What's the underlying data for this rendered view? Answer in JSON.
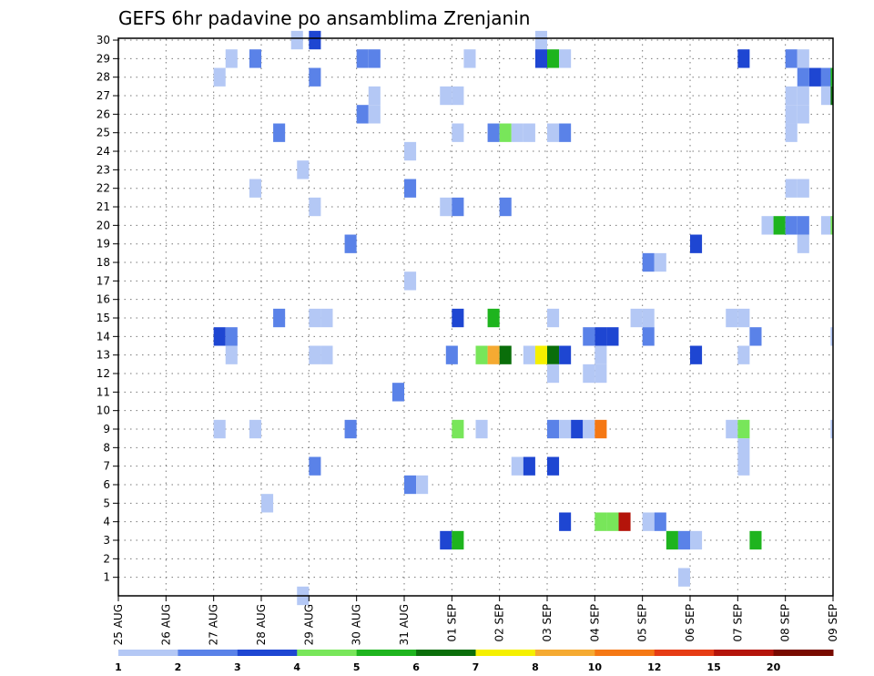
{
  "chart_data": {
    "type": "heatmap",
    "title": "GEFS 6hr padavine po ansamblima Zrenjanin",
    "xlabel": "",
    "ylabel": "",
    "x_ticks": [
      "25 AUG",
      "26 AUG",
      "27 AUG",
      "28 AUG",
      "29 AUG",
      "30 AUG",
      "31 AUG",
      "01 SEP",
      "02 SEP",
      "03 SEP",
      "04 SEP",
      "05 SEP",
      "06 SEP",
      "07 SEP",
      "08 SEP",
      "09 SEP"
    ],
    "x_range_steps": [
      0,
      60
    ],
    "step_hours": 6,
    "y_ticks": [
      1,
      2,
      3,
      4,
      5,
      6,
      7,
      8,
      9,
      10,
      11,
      12,
      13,
      14,
      15,
      16,
      17,
      18,
      19,
      20,
      21,
      22,
      23,
      24,
      25,
      26,
      27,
      28,
      29,
      30
    ],
    "y_range": [
      0,
      30
    ],
    "grid": true,
    "colorbar": {
      "labels": [
        "1",
        "2",
        "3",
        "4",
        "5",
        "6",
        "7",
        "8",
        "10",
        "12",
        "15",
        "20"
      ],
      "colors": [
        "#b4c8f5",
        "#5a82e8",
        "#1e46d2",
        "#78e65a",
        "#1eb41e",
        "#0a6e0a",
        "#f5f000",
        "#f5aa32",
        "#f57814",
        "#e63c14",
        "#b4140a",
        "#780a00"
      ]
    },
    "cells": [
      {
        "t": 14.5,
        "m": 30,
        "c": 1
      },
      {
        "t": 16,
        "m": 30,
        "c": 3
      },
      {
        "t": 35,
        "m": 30,
        "c": 1
      },
      {
        "t": 9,
        "m": 29,
        "c": 1
      },
      {
        "t": 11,
        "m": 29,
        "c": 2
      },
      {
        "t": 20,
        "m": 29,
        "c": 2
      },
      {
        "t": 21,
        "m": 29,
        "c": 2
      },
      {
        "t": 29,
        "m": 29,
        "c": 1
      },
      {
        "t": 35,
        "m": 29,
        "c": 3
      },
      {
        "t": 36,
        "m": 29,
        "c": 5
      },
      {
        "t": 37,
        "m": 29,
        "c": 1
      },
      {
        "t": 52,
        "m": 29,
        "c": 3
      },
      {
        "t": 56,
        "m": 29,
        "c": 2
      },
      {
        "t": 57,
        "m": 29,
        "c": 1
      },
      {
        "t": 8,
        "m": 28,
        "c": 1
      },
      {
        "t": 16,
        "m": 28,
        "c": 2
      },
      {
        "t": 57,
        "m": 28,
        "c": 2
      },
      {
        "t": 58,
        "m": 28,
        "c": 3
      },
      {
        "t": 59,
        "m": 28,
        "c": 2
      },
      {
        "t": 59.8,
        "m": 28,
        "c": 5
      },
      {
        "t": 21,
        "m": 27,
        "c": 1
      },
      {
        "t": 27,
        "m": 27,
        "c": 1
      },
      {
        "t": 28,
        "m": 27,
        "c": 1
      },
      {
        "t": 56,
        "m": 27,
        "c": 1
      },
      {
        "t": 57,
        "m": 27,
        "c": 1
      },
      {
        "t": 59,
        "m": 27,
        "c": 1
      },
      {
        "t": 59.8,
        "m": 27,
        "c": 6
      },
      {
        "t": 20,
        "m": 26,
        "c": 2
      },
      {
        "t": 21,
        "m": 26,
        "c": 1
      },
      {
        "t": 56,
        "m": 26,
        "c": 1
      },
      {
        "t": 57,
        "m": 26,
        "c": 1
      },
      {
        "t": 13,
        "m": 25,
        "c": 2
      },
      {
        "t": 28,
        "m": 25,
        "c": 1
      },
      {
        "t": 31,
        "m": 25,
        "c": 2
      },
      {
        "t": 32,
        "m": 25,
        "c": 4
      },
      {
        "t": 33,
        "m": 25,
        "c": 1
      },
      {
        "t": 34,
        "m": 25,
        "c": 1
      },
      {
        "t": 36,
        "m": 25,
        "c": 1
      },
      {
        "t": 37,
        "m": 25,
        "c": 2
      },
      {
        "t": 56,
        "m": 25,
        "c": 1
      },
      {
        "t": 24,
        "m": 24,
        "c": 1
      },
      {
        "t": 15,
        "m": 23,
        "c": 1
      },
      {
        "t": 11,
        "m": 22,
        "c": 1
      },
      {
        "t": 24,
        "m": 22,
        "c": 2
      },
      {
        "t": 56,
        "m": 22,
        "c": 1
      },
      {
        "t": 57,
        "m": 22,
        "c": 1
      },
      {
        "t": 16,
        "m": 21,
        "c": 1
      },
      {
        "t": 27,
        "m": 21,
        "c": 1
      },
      {
        "t": 28,
        "m": 21,
        "c": 2
      },
      {
        "t": 32,
        "m": 21,
        "c": 2
      },
      {
        "t": 54,
        "m": 20,
        "c": 1
      },
      {
        "t": 55,
        "m": 20,
        "c": 5
      },
      {
        "t": 56,
        "m": 20,
        "c": 2
      },
      {
        "t": 57,
        "m": 20,
        "c": 2
      },
      {
        "t": 59,
        "m": 20,
        "c": 1
      },
      {
        "t": 59.8,
        "m": 20,
        "c": 4
      },
      {
        "t": 19,
        "m": 19,
        "c": 2
      },
      {
        "t": 48,
        "m": 19,
        "c": 3
      },
      {
        "t": 57,
        "m": 19,
        "c": 1
      },
      {
        "t": 44,
        "m": 18,
        "c": 2
      },
      {
        "t": 45,
        "m": 18,
        "c": 1
      },
      {
        "t": 24,
        "m": 17,
        "c": 1
      },
      {
        "t": 13,
        "m": 15,
        "c": 2
      },
      {
        "t": 16,
        "m": 15,
        "c": 1
      },
      {
        "t": 17,
        "m": 15,
        "c": 1
      },
      {
        "t": 28,
        "m": 15,
        "c": 3
      },
      {
        "t": 31,
        "m": 15,
        "c": 5
      },
      {
        "t": 36,
        "m": 15,
        "c": 1
      },
      {
        "t": 43,
        "m": 15,
        "c": 1
      },
      {
        "t": 44,
        "m": 15,
        "c": 1
      },
      {
        "t": 51,
        "m": 15,
        "c": 1
      },
      {
        "t": 52,
        "m": 15,
        "c": 1
      },
      {
        "t": 8,
        "m": 14,
        "c": 3
      },
      {
        "t": 9,
        "m": 14,
        "c": 2
      },
      {
        "t": 39,
        "m": 14,
        "c": 2
      },
      {
        "t": 40,
        "m": 14,
        "c": 3
      },
      {
        "t": 41,
        "m": 14,
        "c": 3
      },
      {
        "t": 44,
        "m": 14,
        "c": 2
      },
      {
        "t": 53,
        "m": 14,
        "c": 2
      },
      {
        "t": 59.8,
        "m": 14,
        "c": 1
      },
      {
        "t": 9,
        "m": 13,
        "c": 1
      },
      {
        "t": 16,
        "m": 13,
        "c": 1
      },
      {
        "t": 17,
        "m": 13,
        "c": 1
      },
      {
        "t": 27.5,
        "m": 13,
        "c": 2
      },
      {
        "t": 30,
        "m": 13,
        "c": 4
      },
      {
        "t": 31,
        "m": 13,
        "c": 8
      },
      {
        "t": 32,
        "m": 13,
        "c": 6
      },
      {
        "t": 34,
        "m": 13,
        "c": 1
      },
      {
        "t": 35,
        "m": 13,
        "c": 7
      },
      {
        "t": 36,
        "m": 13,
        "c": 6
      },
      {
        "t": 37,
        "m": 13,
        "c": 3
      },
      {
        "t": 40,
        "m": 13,
        "c": 1
      },
      {
        "t": 48,
        "m": 13,
        "c": 3
      },
      {
        "t": 52,
        "m": 13,
        "c": 1
      },
      {
        "t": 36,
        "m": 12,
        "c": 1
      },
      {
        "t": 39,
        "m": 12,
        "c": 1
      },
      {
        "t": 40,
        "m": 12,
        "c": 1
      },
      {
        "t": 23,
        "m": 11,
        "c": 2
      },
      {
        "t": 8,
        "m": 9,
        "c": 1
      },
      {
        "t": 11,
        "m": 9,
        "c": 1
      },
      {
        "t": 19,
        "m": 9,
        "c": 2
      },
      {
        "t": 28,
        "m": 9,
        "c": 4
      },
      {
        "t": 30,
        "m": 9,
        "c": 1
      },
      {
        "t": 36,
        "m": 9,
        "c": 2
      },
      {
        "t": 37,
        "m": 9,
        "c": 1
      },
      {
        "t": 38,
        "m": 9,
        "c": 3
      },
      {
        "t": 39,
        "m": 9,
        "c": 1
      },
      {
        "t": 40,
        "m": 9,
        "c": 9
      },
      {
        "t": 51,
        "m": 9,
        "c": 1
      },
      {
        "t": 52,
        "m": 9,
        "c": 4
      },
      {
        "t": 59.8,
        "m": 9,
        "c": 1
      },
      {
        "t": 52,
        "m": 8,
        "c": 1
      },
      {
        "t": 16,
        "m": 7,
        "c": 2
      },
      {
        "t": 33,
        "m": 7,
        "c": 1
      },
      {
        "t": 34,
        "m": 7,
        "c": 3
      },
      {
        "t": 36,
        "m": 7,
        "c": 3
      },
      {
        "t": 52,
        "m": 7,
        "c": 1
      },
      {
        "t": 24,
        "m": 6,
        "c": 2
      },
      {
        "t": 25,
        "m": 6,
        "c": 1
      },
      {
        "t": 12,
        "m": 5,
        "c": 1
      },
      {
        "t": 37,
        "m": 4,
        "c": 3
      },
      {
        "t": 40,
        "m": 4,
        "c": 4
      },
      {
        "t": 41,
        "m": 4,
        "c": 4
      },
      {
        "t": 42,
        "m": 4,
        "c": 11
      },
      {
        "t": 44,
        "m": 4,
        "c": 1
      },
      {
        "t": 45,
        "m": 4,
        "c": 2
      },
      {
        "t": 27,
        "m": 3,
        "c": 3
      },
      {
        "t": 28,
        "m": 3,
        "c": 5
      },
      {
        "t": 46,
        "m": 3,
        "c": 5
      },
      {
        "t": 47,
        "m": 3,
        "c": 2
      },
      {
        "t": 48,
        "m": 3,
        "c": 1
      },
      {
        "t": 53,
        "m": 3,
        "c": 5
      },
      {
        "t": 47,
        "m": 1,
        "c": 1
      },
      {
        "t": 15,
        "m": 0,
        "c": 1
      }
    ]
  }
}
